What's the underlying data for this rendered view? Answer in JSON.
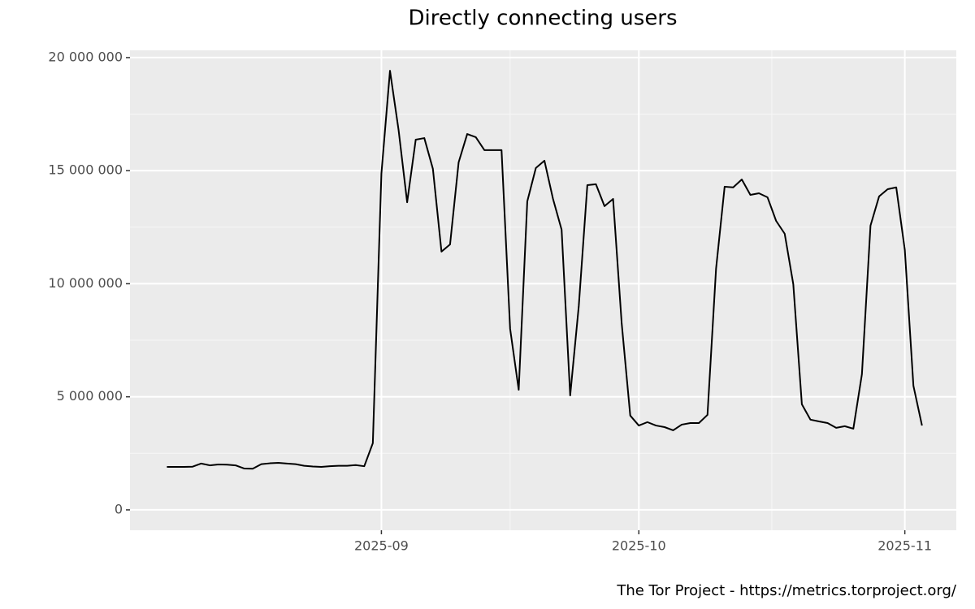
{
  "chart_data": {
    "type": "line",
    "title": "Directly connecting users",
    "caption": "The Tor Project - https://metrics.torproject.org/",
    "series": [
      {
        "color": "#000000",
        "values": [
          1900000,
          1900000,
          1900000,
          1910000,
          2050000,
          1970000,
          2010000,
          2000000,
          1970000,
          1830000,
          1820000,
          2020000,
          2060000,
          2080000,
          2050000,
          2020000,
          1950000,
          1920000,
          1900000,
          1930000,
          1950000,
          1950000,
          1980000,
          1930000,
          2950000,
          14870000,
          19420000,
          16800000,
          13600000,
          16370000,
          16440000,
          15080000,
          11420000,
          11740000,
          15370000,
          16620000,
          16480000,
          15910000,
          15910000,
          15910000,
          8010000,
          5310000,
          13640000,
          15120000,
          15440000,
          13750000,
          12390000,
          5060000,
          9010000,
          14360000,
          14400000,
          13430000,
          13750000,
          8260000,
          4170000,
          3730000,
          3880000,
          3730000,
          3660000,
          3520000,
          3770000,
          3840000,
          3840000,
          4200000,
          10660000,
          14290000,
          14260000,
          14610000,
          13930000,
          14000000,
          13820000,
          12780000,
          12210000,
          9980000,
          4670000,
          3990000,
          3910000,
          3840000,
          3630000,
          3700000,
          3590000,
          6000000,
          12570000,
          13860000,
          14180000,
          14260000,
          11490000,
          5490000,
          3730000
        ]
      }
    ],
    "xlim": [
      -4.3,
      92
    ],
    "xticks": [
      {
        "value": 25,
        "label": "2025-09"
      },
      {
        "value": 55,
        "label": "2025-10"
      },
      {
        "value": 86,
        "label": "2025-11"
      }
    ],
    "ylim": [
      -900000,
      20320000
    ],
    "yticks": [
      0,
      {
        "value": 5000000,
        "label": "5 000 000"
      },
      {
        "value": 10000000,
        "label": "10 000 000"
      },
      {
        "value": 15000000,
        "label": "15 000 000"
      },
      {
        "value": 20000000,
        "label": "20 000 000"
      }
    ],
    "grid": true
  }
}
